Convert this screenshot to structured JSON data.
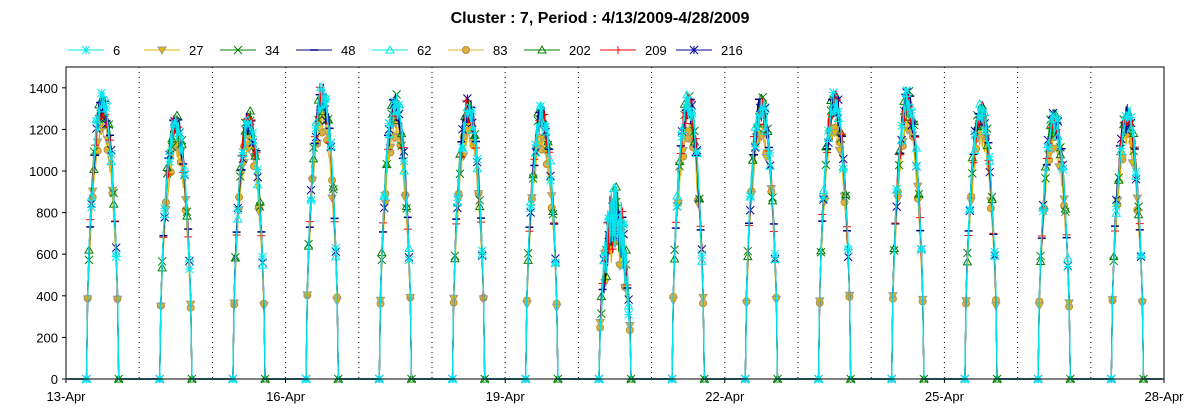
{
  "chart_data": {
    "type": "line",
    "title": "Cluster : 7, Period : 4/13/2009-4/28/2009",
    "xlabel": "",
    "ylabel": "",
    "ylim": [
      0,
      1500
    ],
    "xlim": [
      "2009-04-13",
      "2009-04-28"
    ],
    "yticks": [
      0,
      200,
      400,
      600,
      800,
      1000,
      1200,
      1400
    ],
    "xticks": [
      "13-Apr",
      "16-Apr",
      "19-Apr",
      "22-Apr",
      "25-Apr",
      "28-Apr"
    ],
    "grid": "dotted vertical lines at each day",
    "legend_position": "top",
    "series": [
      {
        "name": "6",
        "color": "#00e5ee",
        "marker": "asterisk"
      },
      {
        "name": "27",
        "color": "#e6b800",
        "marker": "triangle-down"
      },
      {
        "name": "34",
        "color": "#008000",
        "marker": "x"
      },
      {
        "name": "48",
        "color": "#000080",
        "marker": "dash"
      },
      {
        "name": "62",
        "color": "#00e5ee",
        "marker": "triangle"
      },
      {
        "name": "83",
        "color": "#e0b040",
        "marker": "circle"
      },
      {
        "name": "202",
        "color": "#008000",
        "marker": "triangle"
      },
      {
        "name": "209",
        "color": "#ff0000",
        "marker": "plus"
      },
      {
        "name": "216",
        "color": "#000099",
        "marker": "star"
      }
    ],
    "daily_peaks": [
      {
        "date": "2009-04-13",
        "peak": 1390
      },
      {
        "date": "2009-04-14",
        "peak": 1280
      },
      {
        "date": "2009-04-15",
        "peak": 1300
      },
      {
        "date": "2009-04-16",
        "peak": 1430
      },
      {
        "date": "2009-04-17",
        "peak": 1380
      },
      {
        "date": "2009-04-18",
        "peak": 1370
      },
      {
        "date": "2009-04-19",
        "peak": 1330
      },
      {
        "date": "2009-04-20",
        "peak": 950
      },
      {
        "date": "2009-04-21",
        "peak": 1380
      },
      {
        "date": "2009-04-22",
        "peak": 1370
      },
      {
        "date": "2009-04-23",
        "peak": 1400
      },
      {
        "date": "2009-04-24",
        "peak": 1400
      },
      {
        "date": "2009-04-25",
        "peak": 1350
      },
      {
        "date": "2009-04-26",
        "peak": 1300
      },
      {
        "date": "2009-04-27",
        "peak": 1330
      }
    ]
  }
}
